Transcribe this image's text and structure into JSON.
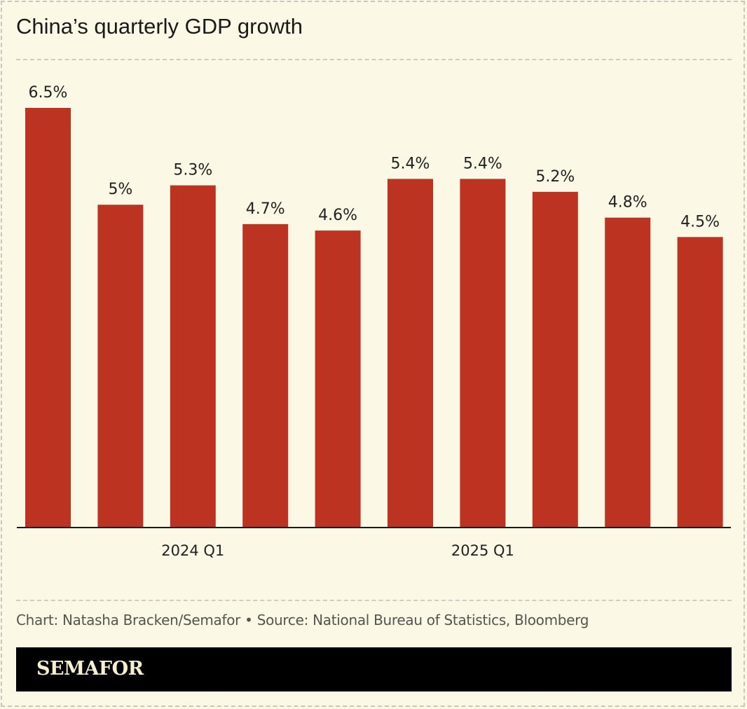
{
  "chart_data": {
    "type": "bar",
    "title": "China’s quarterly GDP growth",
    "categories": [
      "",
      "",
      "2024 Q1",
      "",
      "",
      "",
      "2025 Q1",
      "",
      "",
      ""
    ],
    "values": [
      6.5,
      5,
      5.3,
      4.7,
      4.6,
      5.4,
      5.4,
      5.2,
      4.8,
      4.5
    ],
    "data_labels": [
      "6.5%",
      "5%",
      "5.3%",
      "4.7%",
      "4.6%",
      "5.4%",
      "5.4%",
      "5.2%",
      "4.8%",
      "4.5%"
    ],
    "xlabel": "",
    "ylabel": "",
    "ylim": [
      0,
      6.5
    ],
    "grid": false,
    "legend": "none",
    "bar_color": "#bd3322",
    "background_color": "#fcf8e6"
  },
  "footer": {
    "credit": "Chart: Natasha Bracken/Semafor • Source: National Bureau of Statistics, Bloomberg",
    "brand": "SEMAFOR"
  }
}
